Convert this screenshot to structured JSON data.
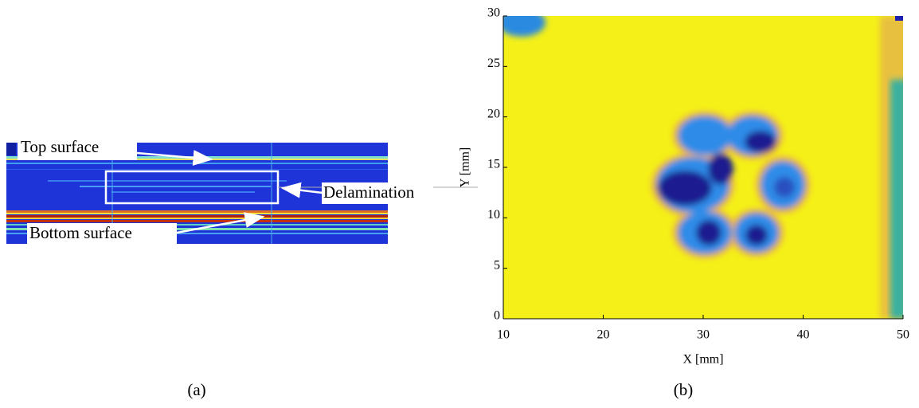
{
  "chart_data": {
    "type": "heatmap",
    "xlabel": "X [mm]",
    "ylabel": "Y [mm]",
    "xlim": [
      10,
      50
    ],
    "xticks": [
      10,
      20,
      30,
      40,
      50
    ],
    "ylim": [
      0,
      30
    ],
    "yticks": [
      0,
      5,
      10,
      15,
      20,
      25,
      30
    ]
  },
  "panel_a": {
    "annotations": [
      "Top surface",
      "Delamination",
      "Bottom surface"
    ]
  },
  "captions": [
    "(a)",
    "(b)"
  ]
}
